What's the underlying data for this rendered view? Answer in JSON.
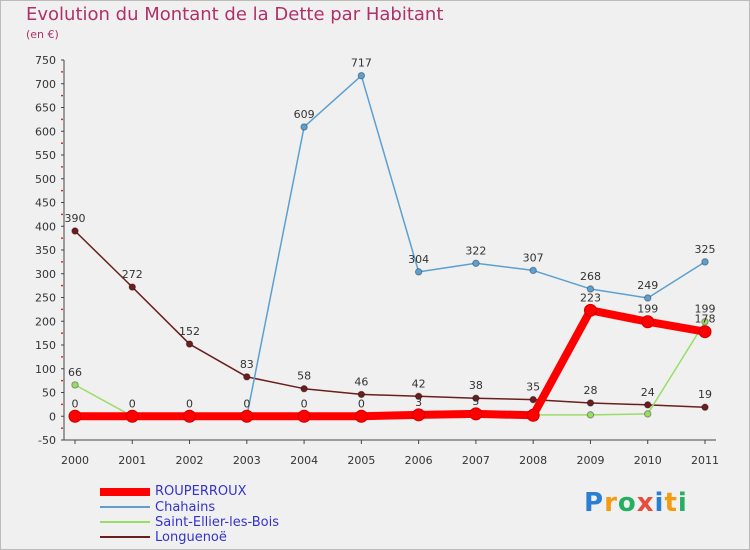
{
  "title": "Evolution du Montant de la Dette par Habitant",
  "subtitle": "(en €)",
  "logo_letters": [
    "P",
    "r",
    "o",
    "x",
    "i",
    "t",
    "i"
  ],
  "logo_colors": [
    "#2a7fd4",
    "#f39c12",
    "#27ae60",
    "#e74c3c",
    "#2a7fd4",
    "#f39c12",
    "#27ae60"
  ],
  "chart_data": {
    "type": "line",
    "x": [
      "2000",
      "2001",
      "2002",
      "2003",
      "2004",
      "2005",
      "2006",
      "2007",
      "2008",
      "2009",
      "2010",
      "2011"
    ],
    "ylim": [
      -50,
      750
    ],
    "yticks": [
      -50,
      0,
      50,
      100,
      150,
      200,
      250,
      300,
      350,
      400,
      450,
      500,
      550,
      600,
      650,
      700,
      750
    ],
    "grid": false,
    "legend": "bottom-left",
    "series": [
      {
        "name": "ROUPERROUX",
        "color": "#ff0000",
        "values": [
          0,
          0,
          0,
          0,
          0,
          0,
          3,
          5,
          2,
          223,
          199,
          178
        ],
        "labels": [
          "0",
          "0",
          "0",
          "0",
          "0",
          "0",
          "3",
          "5",
          "",
          "223",
          "199",
          "178"
        ]
      },
      {
        "name": "Chahains",
        "color": "#5ba0d0",
        "values": [
          0,
          0,
          0,
          0,
          609,
          717,
          304,
          322,
          307,
          268,
          249,
          325
        ],
        "labels": [
          "",
          "",
          "",
          "",
          "609",
          "717",
          "304",
          "322",
          "307",
          "268",
          "249",
          "325"
        ]
      },
      {
        "name": "Saint-Ellier-les-Bois",
        "color": "#99dd66",
        "values": [
          66,
          0,
          0,
          0,
          0,
          0,
          3,
          5,
          3,
          3,
          5,
          199
        ],
        "labels": [
          "66",
          "",
          "",
          "",
          "",
          "",
          "",
          "",
          "",
          "",
          "",
          "199"
        ]
      },
      {
        "name": "Longuenoë",
        "color": "#6b1e1e",
        "values": [
          390,
          272,
          152,
          83,
          58,
          46,
          42,
          38,
          35,
          28,
          24,
          19
        ],
        "labels": [
          "390",
          "272",
          "152",
          "83",
          "58",
          "46",
          "42",
          "38",
          "35",
          "28",
          "24",
          "19"
        ]
      }
    ]
  }
}
